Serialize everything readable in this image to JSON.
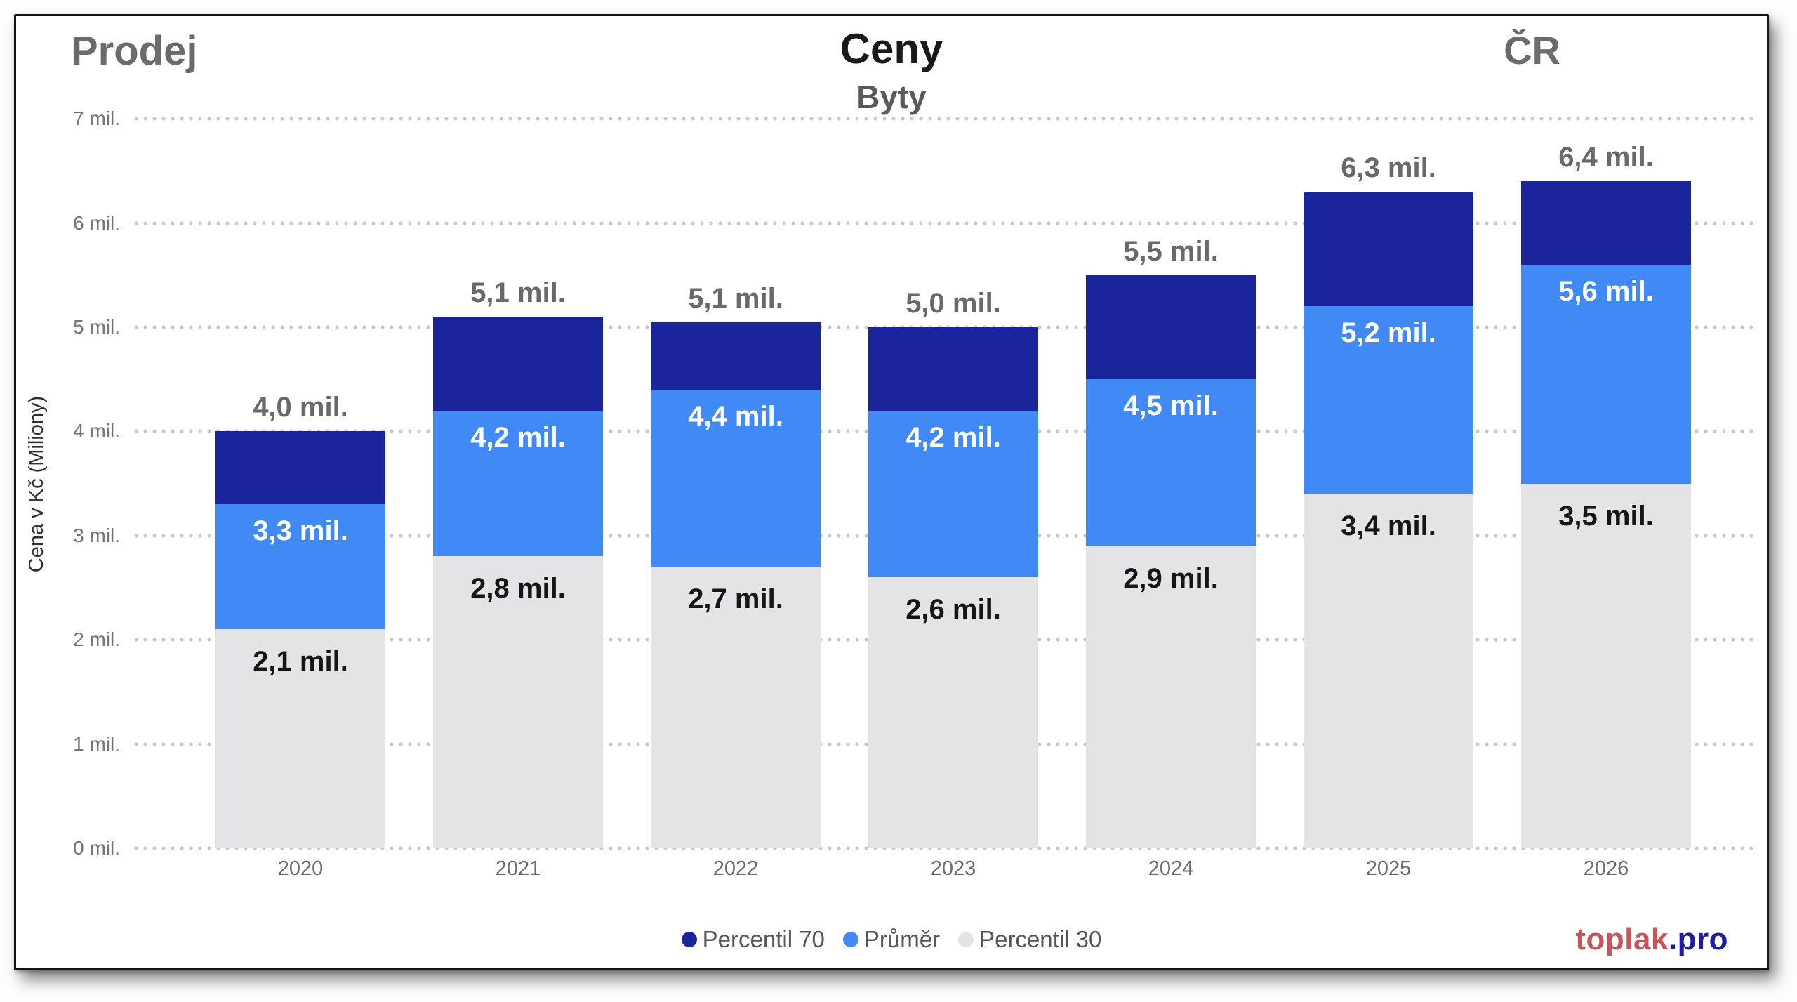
{
  "header": {
    "context_label": "Prodej",
    "title": "Ceny",
    "subtitle": "Byty",
    "region": "ČR"
  },
  "chart_data": {
    "type": "bar",
    "variant": "overlaid-percentile-columns",
    "title": "Ceny",
    "subtitle": "Byty",
    "categories": [
      "2020",
      "2021",
      "2022",
      "2023",
      "2024",
      "2025",
      "2026"
    ],
    "series": [
      {
        "name": "Percentil 70",
        "color": "#1A259B",
        "values": [
          4.0,
          5.1,
          5.05,
          5.0,
          5.5,
          6.3,
          6.4
        ],
        "labels": [
          "4,0 mil.",
          "5,1 mil.",
          "5,1 mil.",
          "5,0 mil.",
          "5,5 mil.",
          "6,3 mil.",
          "6,4 mil."
        ],
        "label_color": "#696969",
        "label_position": "above-bar"
      },
      {
        "name": "Průměr",
        "color": "#4189F5",
        "values": [
          3.3,
          4.2,
          4.4,
          4.2,
          4.5,
          5.2,
          5.6
        ],
        "labels": [
          "3,3 mil.",
          "4,2 mil.",
          "4,4 mil.",
          "4,2 mil.",
          "4,5 mil.",
          "5,2 mil.",
          "5,6 mil."
        ],
        "label_color": "#ffffff",
        "label_position": "inside-top"
      },
      {
        "name": "Percentil 30",
        "color": "#E4E4E6",
        "values": [
          2.1,
          2.8,
          2.7,
          2.6,
          2.9,
          3.4,
          3.5
        ],
        "labels": [
          "2,1 mil.",
          "2,8 mil.",
          "2,7 mil.",
          "2,6 mil.",
          "2,9 mil.",
          "3,4 mil.",
          "3,5 mil."
        ],
        "label_color": "#161616",
        "label_position": "inside-top"
      }
    ],
    "xlabel": "",
    "ylabel": "Cena v Kč (Miliony)",
    "ylim": [
      0,
      7
    ],
    "y_ticks": [
      "0 mil.",
      "1 mil.",
      "2 mil.",
      "3 mil.",
      "4 mil.",
      "5 mil.",
      "6 mil.",
      "7 mil."
    ],
    "grid": "horizontal-dotted",
    "legend_position": "bottom-center"
  },
  "legend": {
    "items": [
      {
        "label": "Percentil 70",
        "color": "#1A259B"
      },
      {
        "label": "Průměr",
        "color": "#4189F5"
      },
      {
        "label": "Percentil 30",
        "color": "#E4E4E6"
      }
    ]
  },
  "footer": {
    "logo_primary": "toplak",
    "logo_secondary": ".pro",
    "logo_primary_color": "#C6555A",
    "logo_secondary_color": "#1B1BA3"
  },
  "colors": {
    "card_border": "#141414",
    "grid_dots": "#c7c7c7",
    "tick_text": "#757575",
    "year_text": "#6b6b6b",
    "header_gray": "#6b6b6b",
    "title_black": "#191919"
  }
}
